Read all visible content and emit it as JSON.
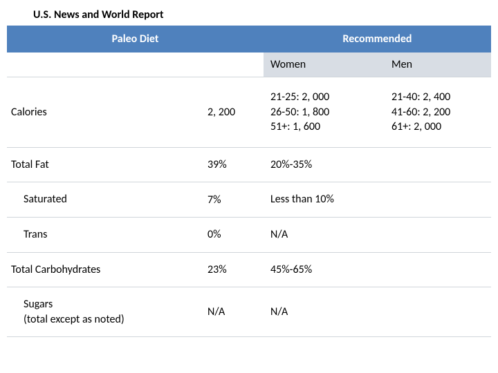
{
  "title": "U.S. News and World Report",
  "colors": {
    "header_bg": "#4f81bd",
    "header_text": "#ffffff",
    "subheader_bg": "#d8dde4",
    "border": "#d0d5da",
    "text": "#000000",
    "background": "#ffffff"
  },
  "fonts": {
    "family": "Calibri, Arial, sans-serif",
    "title_size_pt": 12,
    "cell_size_pt": 12,
    "header_weight": "bold"
  },
  "table": {
    "headers": {
      "col1_label": "Paleo Diet",
      "col2_label": "Recommended",
      "sub_women": "Women",
      "sub_men": "Men"
    },
    "rows": [
      {
        "label": "Calories",
        "indent": false,
        "tall": true,
        "paleo": "2, 200",
        "women": "21-25: 2, 000\n26-50: 1, 800\n51+: 1, 600",
        "men": "21-40: 2, 400\n41-60: 2, 200\n61+: 2, 000"
      },
      {
        "label": "Total Fat",
        "indent": false,
        "tall": false,
        "paleo": "39%",
        "women": "20%-35%",
        "men": ""
      },
      {
        "label": "Saturated",
        "indent": true,
        "tall": false,
        "paleo": "7%",
        "women": "Less than 10%",
        "men": ""
      },
      {
        "label": "Trans",
        "indent": true,
        "tall": false,
        "paleo": "0%",
        "women": "N/A",
        "men": ""
      },
      {
        "label": "Total Carbohydrates",
        "indent": false,
        "tall": false,
        "paleo": "23%",
        "women": "45%-65%",
        "men": ""
      },
      {
        "label": "Sugars\n(total except as noted)",
        "indent": true,
        "tall": false,
        "paleo": "N/A",
        "women": "N/A",
        "men": ""
      }
    ]
  }
}
